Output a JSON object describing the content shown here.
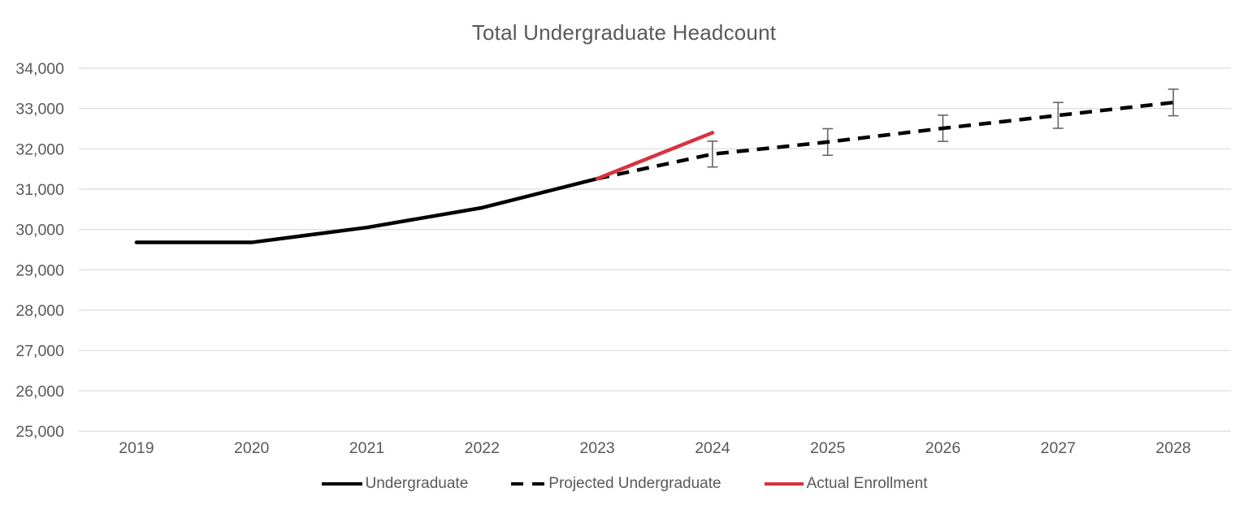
{
  "chart_data": {
    "type": "line",
    "title": "Total Undergraduate Headcount",
    "categories": [
      "2019",
      "2020",
      "2021",
      "2022",
      "2023",
      "2024",
      "2025",
      "2026",
      "2027",
      "2028"
    ],
    "xlabel": "",
    "ylabel": "",
    "ylim": [
      25000,
      34000
    ],
    "ytick_step": 1000,
    "grid": true,
    "legend_position": "bottom",
    "colors": {
      "grid": "#d9d9d9",
      "axis_text": "#595959",
      "title_text": "#595959",
      "error_bar": "#666666",
      "background": "#ffffff"
    },
    "series": [
      {
        "name": "Undergraduate",
        "line_style": "solid",
        "color": "#000000",
        "x": [
          "2019",
          "2020",
          "2021",
          "2022",
          "2023"
        ],
        "values": [
          29680,
          29680,
          30050,
          30540,
          31260
        ]
      },
      {
        "name": "Projected Undergraduate",
        "line_style": "dashed",
        "color": "#000000",
        "x": [
          "2023",
          "2024",
          "2025",
          "2026",
          "2027",
          "2028"
        ],
        "values": [
          31260,
          31870,
          32170,
          32510,
          32830,
          33150
        ],
        "error": [
          null,
          320,
          330,
          325,
          320,
          330
        ]
      },
      {
        "name": "Actual Enrollment",
        "line_style": "solid",
        "color": "#d7323e",
        "x": [
          "2023",
          "2024"
        ],
        "values": [
          31260,
          32400
        ]
      }
    ]
  }
}
